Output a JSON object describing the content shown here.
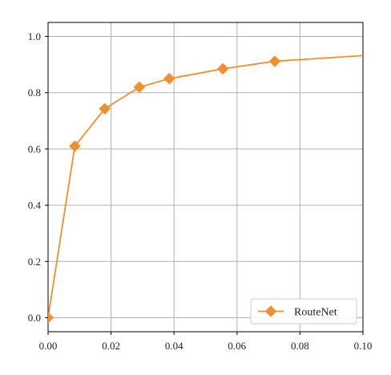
{
  "chart_data": {
    "type": "line",
    "title": "",
    "xlabel": "",
    "ylabel": "",
    "xlim": [
      0.0,
      0.1
    ],
    "ylim": [
      -0.05,
      1.05
    ],
    "x_ticks": [
      "0.00",
      "0.02",
      "0.04",
      "0.06",
      "0.08",
      "0.10"
    ],
    "x_tick_values": [
      0.0,
      0.02,
      0.04,
      0.06,
      0.08,
      0.1
    ],
    "y_ticks": [
      "0.0",
      "0.2",
      "0.4",
      "0.6",
      "0.8",
      "1.0"
    ],
    "y_tick_values": [
      0.0,
      0.2,
      0.4,
      0.6,
      0.8,
      1.0
    ],
    "grid": true,
    "legend_position": "bottom-right",
    "series": [
      {
        "name": "RouteNet",
        "color": "#f28e2b",
        "marker": "diamond",
        "x": [
          0.0,
          0.0085,
          0.018,
          0.029,
          0.0385,
          0.0555,
          0.072,
          0.1
        ],
        "y": [
          0.0,
          0.61,
          0.743,
          0.82,
          0.85,
          0.885,
          0.912,
          0.932
        ],
        "marker_mask": [
          true,
          true,
          true,
          true,
          true,
          true,
          true,
          false
        ]
      }
    ]
  }
}
